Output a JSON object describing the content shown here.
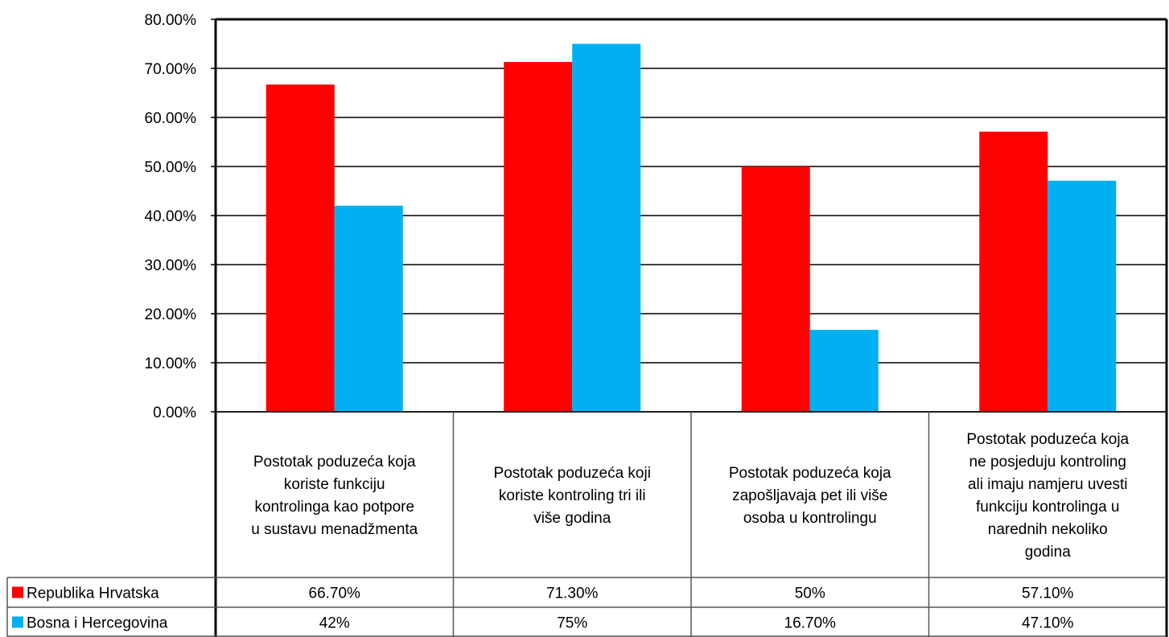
{
  "chart_data": {
    "type": "bar",
    "title": "",
    "xlabel": "",
    "ylabel": "",
    "ylim": [
      0,
      80
    ],
    "y_ticks": [
      "0.00%",
      "10.00%",
      "20.00%",
      "30.00%",
      "40.00%",
      "50.00%",
      "60.00%",
      "70.00%",
      "80.00%"
    ],
    "grid": true,
    "legend": "data-table",
    "categories": [
      [
        "Postotak poduzeća koja",
        "koriste funkciju",
        "kontrolinga kao potpore",
        "u sustavu menadžmenta"
      ],
      [
        "Postotak poduzeća koji",
        "koriste kontroling tri ili",
        "više godina"
      ],
      [
        "Postotak poduzeća koja",
        "zapošljavaja pet ili više",
        "osoba u kontrolingu"
      ],
      [
        "Postotak poduzeća koja",
        "ne posjeduju kontroling",
        "ali imaju namjeru uvesti",
        "funkciju kontrolinga u",
        "narednih nekoliko",
        "godina"
      ]
    ],
    "series": [
      {
        "name": "Republika Hrvatska",
        "color": "#ff0000",
        "values": [
          66.7,
          71.3,
          50,
          57.1
        ],
        "labels": [
          "66.70%",
          "71.30%",
          "50%",
          "57.10%"
        ]
      },
      {
        "name": "Bosna i Hercegovina",
        "color": "#00b0f0",
        "values": [
          42,
          75,
          16.7,
          47.1
        ],
        "labels": [
          "42%",
          "75%",
          "16.70%",
          "47.10%"
        ]
      }
    ]
  }
}
